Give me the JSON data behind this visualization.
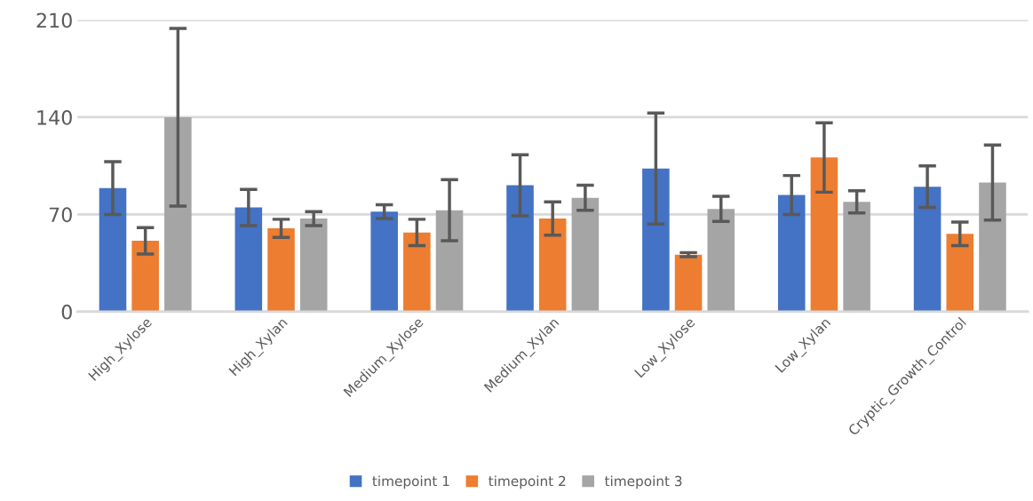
{
  "chart_data": {
    "type": "bar",
    "categories": [
      "High_Xylose",
      "High_Xylan",
      "Medium_Xylose",
      "Medium_Xylan",
      "Low_Xylose",
      "Low_Xylan",
      "Cryptic_Growth_Control"
    ],
    "series": [
      {
        "name": "timepoint 1",
        "color": "#4472c4",
        "values": [
          89,
          75,
          72,
          91,
          103,
          84,
          90
        ],
        "errors": [
          19,
          13,
          5,
          22,
          40,
          14,
          15
        ]
      },
      {
        "name": "timepoint 2",
        "color": "#ed7d31",
        "values": [
          51,
          60,
          57,
          67,
          41,
          111,
          56
        ],
        "errors": [
          9.5,
          6.5,
          9.5,
          12,
          1.5,
          25,
          8.5
        ]
      },
      {
        "name": "timepoint 3",
        "color": "#a5a5a5",
        "values": [
          140,
          67,
          73,
          82,
          74,
          79,
          93
        ],
        "errors": [
          64,
          5,
          22,
          9,
          9,
          8,
          27
        ]
      }
    ],
    "ylim": [
      0,
      210
    ],
    "yticks": [
      0,
      70,
      140,
      210
    ],
    "grid": "y",
    "legend": "bottom"
  }
}
